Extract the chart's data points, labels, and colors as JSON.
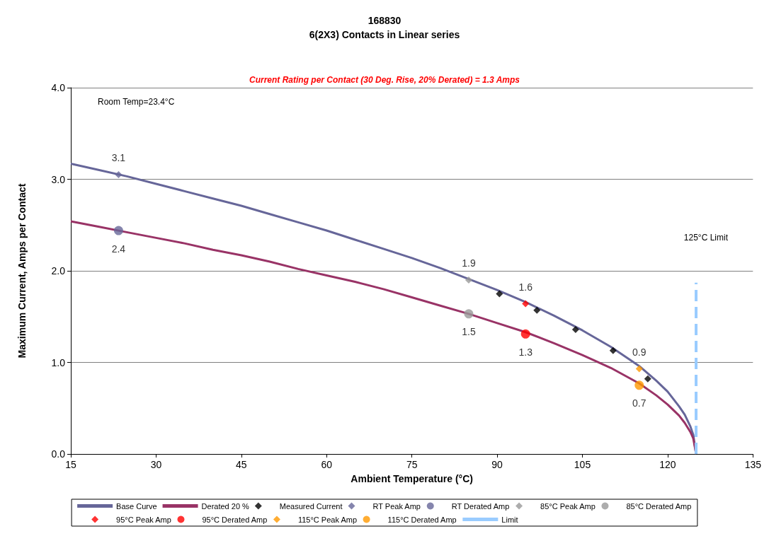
{
  "chart_data": {
    "type": "line",
    "title": "168830\n6(2X3) Contacts in Linear series",
    "subtitle": "Current Rating per Contact (30 Deg. Rise, 20% Derated) = 1.3 Amps",
    "xlabel": "Ambient Temperature (°C)",
    "ylabel": "Maximum Current, Amps per Contact",
    "xlim": [
      15,
      135
    ],
    "xticks": [
      15,
      30,
      45,
      60,
      75,
      90,
      105,
      120,
      135
    ],
    "ylim": [
      0,
      4
    ],
    "yticks": [
      {
        "value": 0,
        "label": "0.0"
      },
      {
        "value": 1,
        "label": "1.0"
      },
      {
        "value": 2,
        "label": "2.0"
      },
      {
        "value": 3,
        "label": "3.0"
      },
      {
        "value": 4,
        "label": "4.0"
      }
    ],
    "grid": "y",
    "legend": "bottom",
    "annotations": [
      "Room Temp=23.4°C",
      "125°C Limit"
    ],
    "series": [
      {
        "name": "Base Curve",
        "color": "#666699",
        "marker": "none",
        "x": [
          15,
          20,
          25,
          30,
          35,
          40,
          45,
          50,
          55,
          60,
          65,
          70,
          75,
          80,
          85,
          90,
          95,
          100,
          105,
          110,
          115,
          118,
          120,
          122,
          123,
          124,
          124.5,
          125
        ],
        "values": [
          3.17,
          3.1,
          3.03,
          2.95,
          2.87,
          2.79,
          2.71,
          2.62,
          2.53,
          2.44,
          2.34,
          2.24,
          2.14,
          2.03,
          1.91,
          1.79,
          1.66,
          1.51,
          1.35,
          1.17,
          0.96,
          0.8,
          0.68,
          0.52,
          0.43,
          0.3,
          0.21,
          0
        ]
      },
      {
        "name": "Derated 20 %",
        "color": "#993366",
        "marker": "none",
        "x": [
          15,
          20,
          25,
          30,
          35,
          40,
          45,
          50,
          55,
          60,
          65,
          70,
          75,
          80,
          85,
          90,
          95,
          100,
          105,
          110,
          115,
          118,
          120,
          122,
          123,
          124,
          124.5,
          125
        ],
        "values": [
          2.54,
          2.48,
          2.42,
          2.36,
          2.3,
          2.23,
          2.17,
          2.1,
          2.02,
          1.95,
          1.88,
          1.8,
          1.71,
          1.62,
          1.53,
          1.43,
          1.33,
          1.21,
          1.08,
          0.94,
          0.77,
          0.64,
          0.54,
          0.42,
          0.34,
          0.24,
          0.17,
          0
        ]
      },
      {
        "name": "Measured Current",
        "type": "scatter",
        "color": "#000000",
        "marker": "diamond",
        "x": [
          90.4,
          97,
          103.8,
          110.4,
          116.5
        ],
        "values": [
          1.75,
          1.57,
          1.36,
          1.13,
          0.82
        ]
      },
      {
        "name": "RT Peak Amp",
        "type": "scatter",
        "color": "#666699",
        "marker": "diamond",
        "x": [
          23.4
        ],
        "values": [
          3.05
        ],
        "value_labels": [
          "3.1"
        ]
      },
      {
        "name": "RT Derated Amp",
        "type": "scatter",
        "color": "#666699",
        "marker": "circle",
        "x": [
          23.4
        ],
        "values": [
          2.44
        ],
        "value_labels": [
          "2.4"
        ]
      },
      {
        "name": "85°C Peak Amp",
        "type": "scatter",
        "color": "#999999",
        "marker": "diamond",
        "x": [
          85
        ],
        "values": [
          1.9
        ],
        "value_labels": [
          "1.9"
        ]
      },
      {
        "name": "85°C Derated Amp",
        "type": "scatter",
        "color": "#999999",
        "marker": "circle",
        "x": [
          85
        ],
        "values": [
          1.53
        ],
        "value_labels": [
          "1.5"
        ]
      },
      {
        "name": "95°C Peak Amp",
        "type": "scatter",
        "color": "#ff0000",
        "marker": "diamond",
        "x": [
          95
        ],
        "values": [
          1.64
        ],
        "value_labels": [
          "1.6"
        ]
      },
      {
        "name": "95°C Derated Amp",
        "type": "scatter",
        "color": "#ff0000",
        "marker": "circle",
        "x": [
          95
        ],
        "values": [
          1.31
        ],
        "value_labels": [
          "1.3"
        ]
      },
      {
        "name": "115°C Peak Amp",
        "type": "scatter",
        "color": "#ff9900",
        "marker": "diamond",
        "x": [
          115
        ],
        "values": [
          0.93
        ],
        "value_labels": [
          "0.9"
        ]
      },
      {
        "name": "115°C Derated Amp",
        "type": "scatter",
        "color": "#ff9900",
        "marker": "circle",
        "x": [
          115
        ],
        "values": [
          0.75
        ],
        "value_labels": [
          "0.7"
        ]
      },
      {
        "name": "Limit",
        "type": "line",
        "color": "#99ccff",
        "marker": "none",
        "line_style": "dashed",
        "x": [
          125,
          125
        ],
        "values": [
          0,
          1.87
        ]
      }
    ]
  }
}
